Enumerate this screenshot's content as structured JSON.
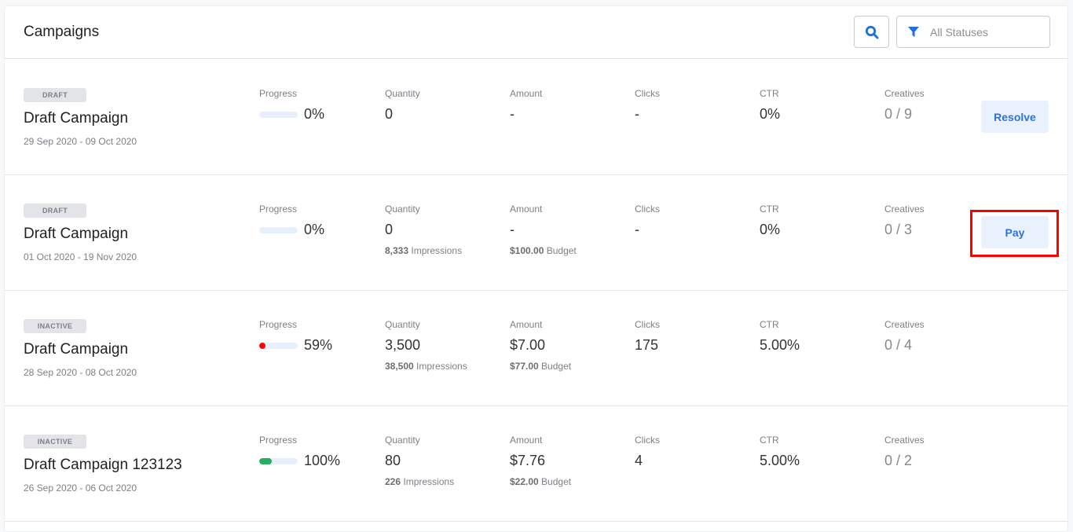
{
  "header": {
    "title": "Campaigns",
    "filter_label": "All Statuses"
  },
  "labels": {
    "progress": "Progress",
    "quantity": "Quantity",
    "amount": "Amount",
    "clicks": "Clicks",
    "ctr": "CTR",
    "creatives": "Creatives"
  },
  "colors": {
    "accent": "#2f72d6",
    "red": "#ff0000",
    "green": "#27ae60"
  },
  "campaigns": [
    {
      "status": "DRAFT",
      "name": "Draft Campaign",
      "dates": "29 Sep 2020 - 09 Oct 2020",
      "progress": "0%",
      "bar_fill": 0,
      "bar_color": "#e8effc",
      "quantity": "0",
      "impr_num": "",
      "impr_label": "",
      "amount": "-",
      "budget_num": "",
      "budget_label": "",
      "clicks": "-",
      "ctr": "0%",
      "creatives_done": "0",
      "creatives_total": "/ 9",
      "action": "Resolve"
    },
    {
      "status": "DRAFT",
      "name": "Draft Campaign",
      "dates": "01 Oct 2020 - 19 Nov 2020",
      "progress": "0%",
      "bar_fill": 0,
      "bar_color": "#e8effc",
      "quantity": "0",
      "impr_num": "8,333",
      "impr_label": "Impressions",
      "amount": "-",
      "budget_num": "$100.00",
      "budget_label": "Budget",
      "clicks": "-",
      "ctr": "0%",
      "creatives_done": "0",
      "creatives_total": "/ 3",
      "action": "Pay",
      "highlighted": true
    },
    {
      "status": "INACTIVE",
      "name": "Draft Campaign",
      "dates": "28 Sep 2020 - 08 Oct 2020",
      "progress": "59%",
      "bar_fill": 0.14,
      "bar_color": "#ff0000",
      "quantity": "3,500",
      "impr_num": "38,500",
      "impr_label": "Impressions",
      "amount": "$7.00",
      "budget_num": "$77.00",
      "budget_label": "Budget",
      "clicks": "175",
      "ctr": "5.00%",
      "creatives_done": "0",
      "creatives_total": "/ 4",
      "action": ""
    },
    {
      "status": "INACTIVE",
      "name": "Draft Campaign 123123",
      "dates": "26 Sep 2020 - 06 Oct 2020",
      "progress": "100%",
      "bar_fill": 0.33,
      "bar_color": "#27ae60",
      "quantity": "80",
      "impr_num": "226",
      "impr_label": "Impressions",
      "amount": "$7.76",
      "budget_num": "$22.00",
      "budget_label": "Budget",
      "clicks": "4",
      "ctr": "5.00%",
      "creatives_done": "0",
      "creatives_total": "/ 2",
      "action": ""
    }
  ]
}
